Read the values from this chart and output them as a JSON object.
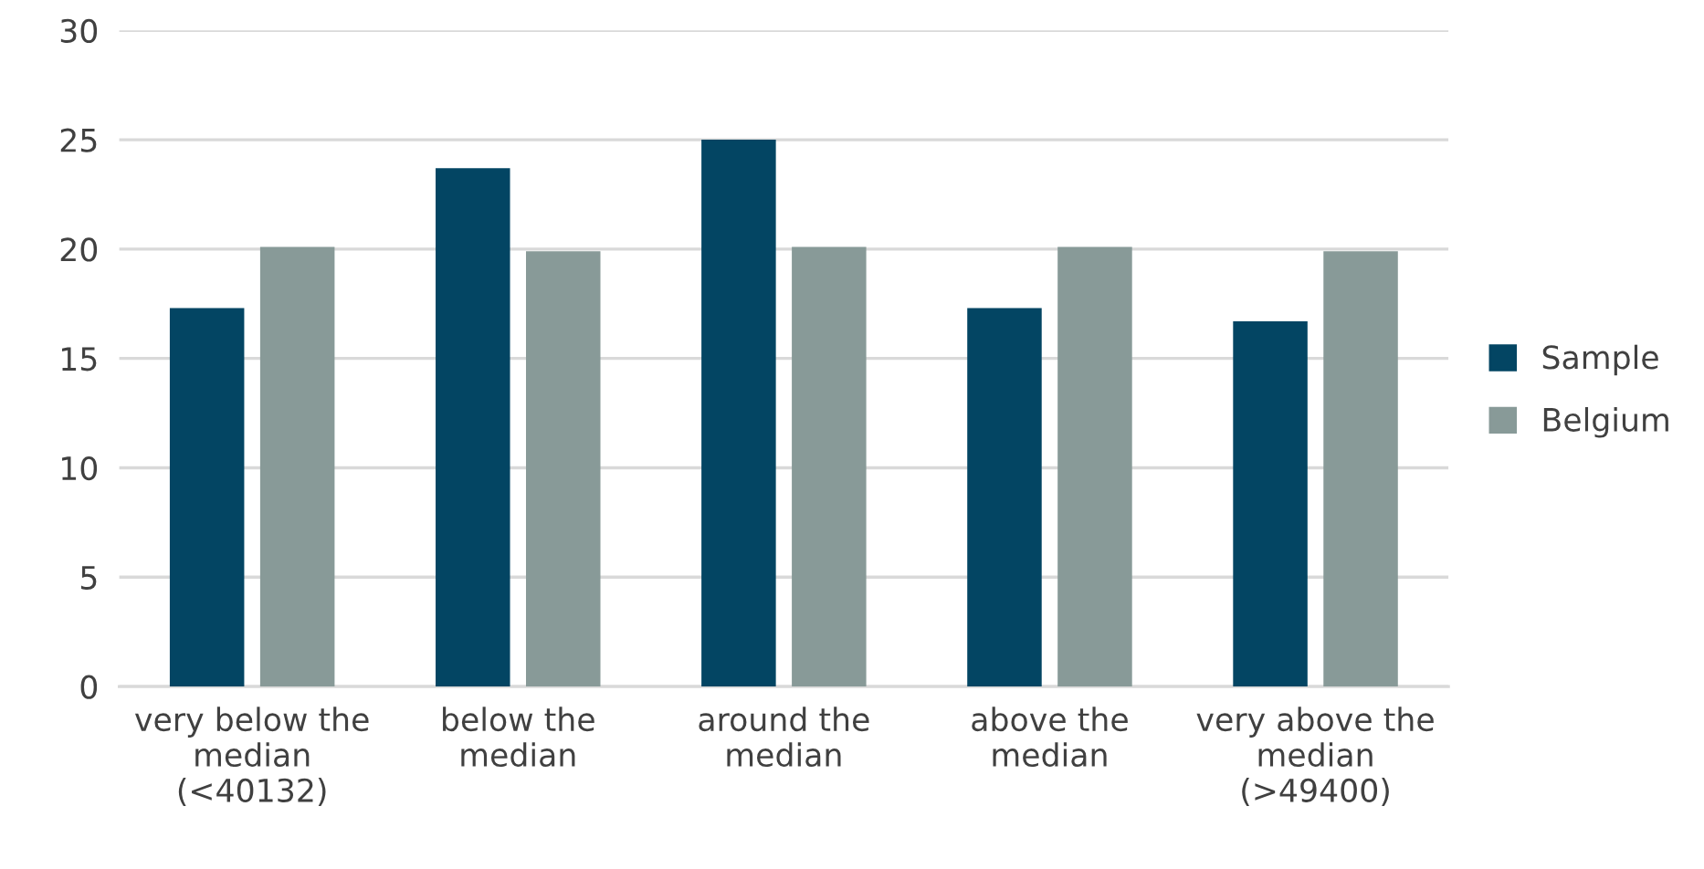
{
  "chart_data": {
    "type": "bar",
    "categories": [
      "very below the\nmedian\n(<40132)",
      "below the\nmedian",
      "around the\nmedian",
      "above the\nmedian",
      "very above the\nmedian\n(>49400)"
    ],
    "series": [
      {
        "name": "Sample",
        "color": "#034563",
        "values": [
          17.3,
          23.7,
          25.0,
          17.3,
          16.7
        ]
      },
      {
        "name": "Belgium",
        "color": "#889a98",
        "values": [
          20.1,
          19.9,
          20.1,
          20.1,
          19.9
        ]
      }
    ],
    "ylim": [
      0,
      30
    ],
    "yticks": [
      0,
      5,
      10,
      15,
      20,
      25,
      30
    ],
    "grid": "y",
    "legend": "right"
  }
}
